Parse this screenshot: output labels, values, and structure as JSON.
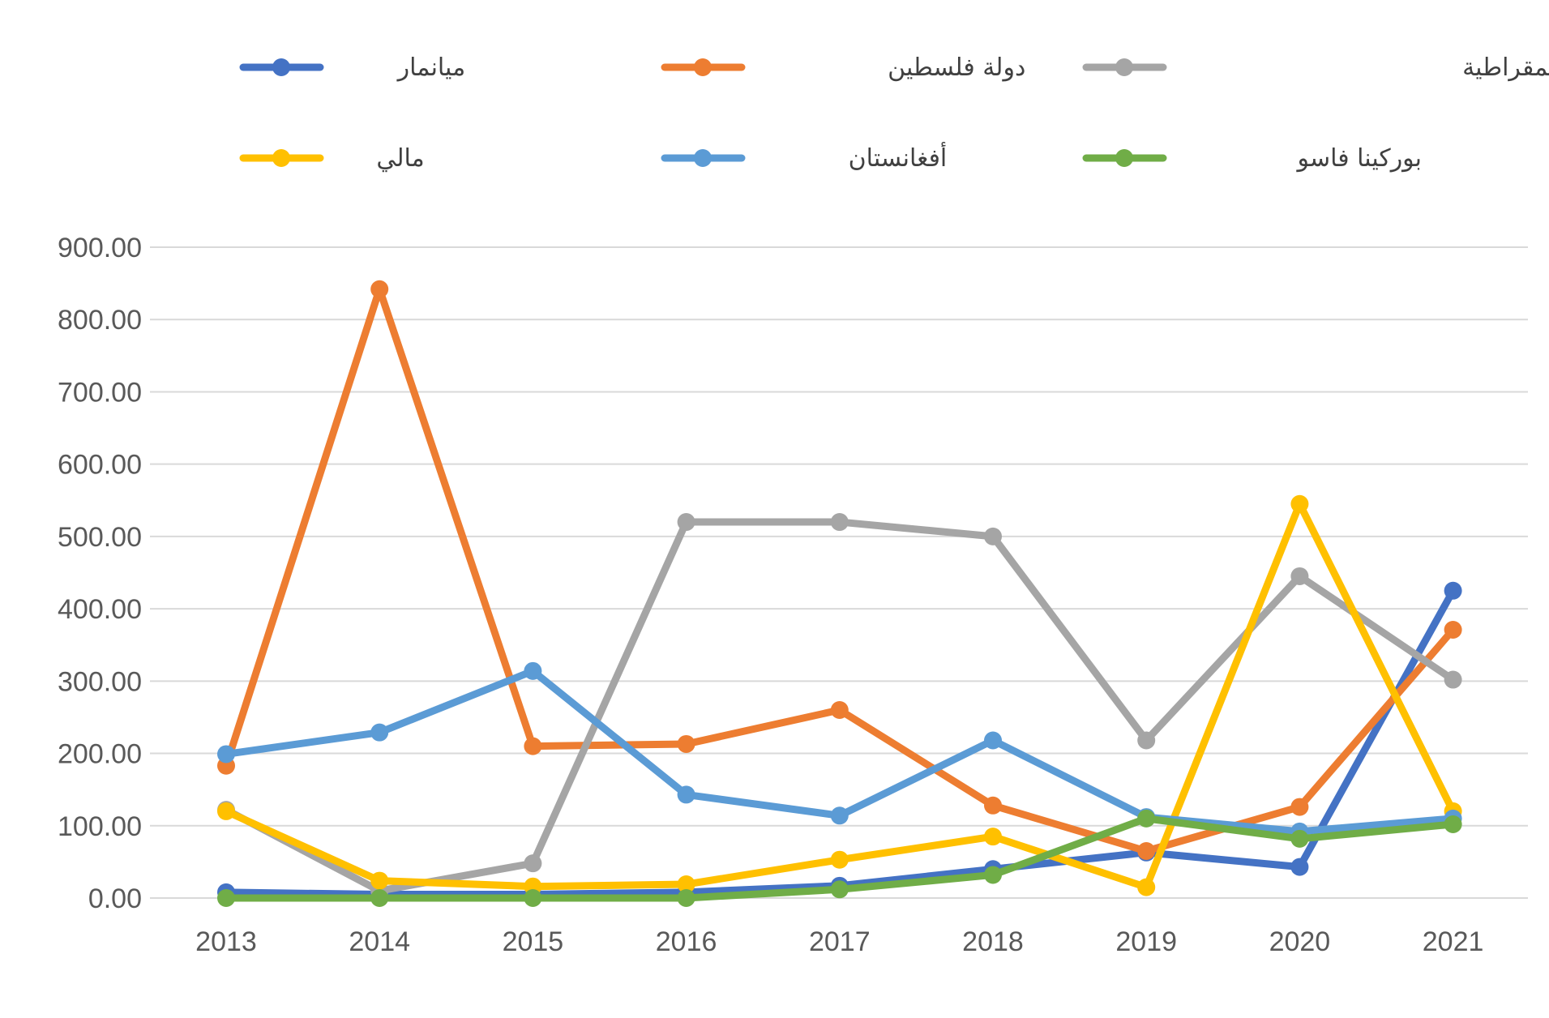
{
  "chart_data": {
    "type": "line",
    "title": "",
    "xlabel": "",
    "ylabel": "",
    "categories": [
      "2013",
      "2014",
      "2015",
      "2016",
      "2017",
      "2018",
      "2019",
      "2020",
      "2021"
    ],
    "ylim": [
      0,
      900
    ],
    "yticks": [
      0,
      100,
      200,
      300,
      400,
      500,
      600,
      700,
      800,
      900
    ],
    "ytick_labels": [
      "0.00",
      "100.00",
      "200.00",
      "300.00",
      "400.00",
      "500.00",
      "600.00",
      "700.00",
      "800.00",
      "900.00"
    ],
    "grid": true,
    "legend_position": "top",
    "series": [
      {
        "name": "ميانمار",
        "color": "#4472C4",
        "values": [
          8,
          5,
          5,
          8,
          17,
          40,
          63,
          43,
          425
        ]
      },
      {
        "name": "دولة فلسطين",
        "color": "#ED7D31",
        "values": [
          183,
          842,
          210,
          213,
          260,
          128,
          65,
          126,
          371
        ]
      },
      {
        "name": "جمهورية الكونغو الديمقراطية",
        "color": "#A5A5A5",
        "values": [
          122,
          10,
          48,
          520,
          520,
          500,
          218,
          445,
          302
        ]
      },
      {
        "name": "مالي",
        "color": "#FFC000",
        "values": [
          120,
          24,
          16,
          19,
          53,
          85,
          15,
          545,
          120
        ]
      },
      {
        "name": "أفغانستان",
        "color": "#5B9BD5",
        "values": [
          199,
          229,
          314,
          143,
          114,
          218,
          112,
          92,
          110
        ]
      },
      {
        "name": "بوركينا فاسو",
        "color": "#70AD47",
        "values": [
          0,
          0,
          0,
          0,
          12,
          32,
          110,
          82,
          102
        ]
      }
    ]
  }
}
